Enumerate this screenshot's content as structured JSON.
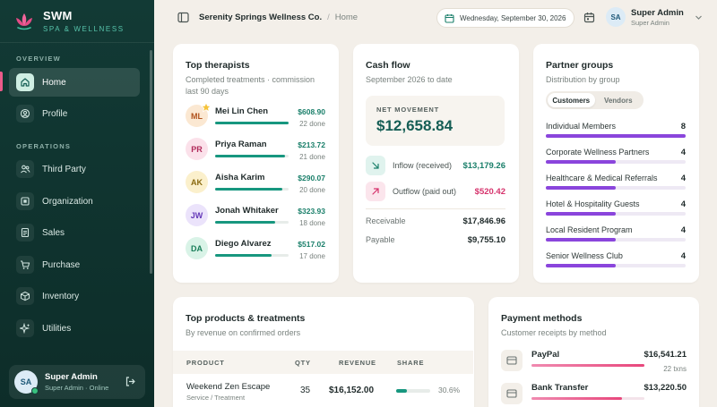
{
  "brand": {
    "name": "SWM",
    "tagline": "SPA & WELLNESS"
  },
  "sidebar": {
    "sections": [
      {
        "label": "OVERVIEW",
        "items": [
          {
            "label": "Home",
            "icon": "home-icon",
            "active": true
          },
          {
            "label": "Profile",
            "icon": "profile-icon"
          }
        ]
      },
      {
        "label": "OPERATIONS",
        "items": [
          {
            "label": "Third Party",
            "icon": "users-icon"
          },
          {
            "label": "Organization",
            "icon": "organization-icon"
          },
          {
            "label": "Sales",
            "icon": "receipt-icon"
          },
          {
            "label": "Purchase",
            "icon": "cart-icon"
          },
          {
            "label": "Inventory",
            "icon": "box-icon"
          },
          {
            "label": "Utilities",
            "icon": "sparkle-icon"
          }
        ]
      }
    ],
    "user": {
      "initials": "SA",
      "name": "Super Admin",
      "status": "Super Admin · Online"
    }
  },
  "topbar": {
    "company": "Serenity Springs Wellness Co.",
    "separator": "/",
    "page": "Home",
    "date": "Wednesday, September 30, 2026",
    "user": {
      "initials": "SA",
      "name": "Super Admin",
      "role": "Super Admin"
    }
  },
  "therapists": {
    "title": "Top therapists",
    "subtitle": "Completed treatments · commission last 90 days",
    "rows": [
      {
        "initials": "ML",
        "name": "Mei Lin Chen",
        "amount": "$608.90",
        "done": "22 done",
        "share": 1.0,
        "avatar_bg": "#fbe8d2",
        "avatar_fg": "#b0521c"
      },
      {
        "initials": "PR",
        "name": "Priya Raman",
        "amount": "$213.72",
        "done": "21 done",
        "share": 0.95,
        "avatar_bg": "#fbe1ea",
        "avatar_fg": "#b02a5a"
      },
      {
        "initials": "AK",
        "name": "Aisha Karim",
        "amount": "$290.07",
        "done": "20 done",
        "share": 0.91,
        "avatar_bg": "#fbf0cc",
        "avatar_fg": "#8a6a10"
      },
      {
        "initials": "JW",
        "name": "Jonah Whitaker",
        "amount": "$323.93",
        "done": "18 done",
        "share": 0.82,
        "avatar_bg": "#ebe3fb",
        "avatar_fg": "#6438b8"
      },
      {
        "initials": "DA",
        "name": "Diego Alvarez",
        "amount": "$517.02",
        "done": "17 done",
        "share": 0.77,
        "avatar_bg": "#d9f3e7",
        "avatar_fg": "#1a7f5a"
      }
    ]
  },
  "cashflow": {
    "title": "Cash flow",
    "subtitle": "September 2026 to date",
    "net_label": "NET MOVEMENT",
    "net_value": "$12,658.84",
    "inflow_label": "Inflow (received)",
    "inflow_value": "$13,179.26",
    "outflow_label": "Outflow (paid out)",
    "outflow_value": "$520.42",
    "receivable_label": "Receivable",
    "receivable_value": "$17,846.96",
    "payable_label": "Payable",
    "payable_value": "$9,755.10",
    "colors": {
      "inflow": "#1a7f6a",
      "outflow": "#d6336c"
    }
  },
  "partners": {
    "title": "Partner groups",
    "subtitle": "Distribution by group",
    "tabs": [
      {
        "label": "Customers",
        "active": true
      },
      {
        "label": "Vendors",
        "active": false
      }
    ],
    "groups": [
      {
        "name": "Individual Members",
        "count": "8",
        "share": 1.0
      },
      {
        "name": "Corporate Wellness Partners",
        "count": "4",
        "share": 0.5
      },
      {
        "name": "Healthcare & Medical Referrals",
        "count": "4",
        "share": 0.5
      },
      {
        "name": "Hotel & Hospitality Guests",
        "count": "4",
        "share": 0.5
      },
      {
        "name": "Local Resident Program",
        "count": "4",
        "share": 0.5
      },
      {
        "name": "Senior Wellness Club",
        "count": "4",
        "share": 0.5
      }
    ]
  },
  "products": {
    "title": "Top products & treatments",
    "subtitle": "By revenue on confirmed orders",
    "columns": {
      "product": "PRODUCT",
      "qty": "QTY",
      "revenue": "REVENUE",
      "share": "SHARE"
    },
    "rows": [
      {
        "name": "Weekend Zen Escape",
        "category": "Service / Treatment",
        "qty": "35",
        "revenue": "$16,152.00",
        "share": "30.6%",
        "share_value": 0.306
      }
    ]
  },
  "payments": {
    "title": "Payment methods",
    "subtitle": "Customer receipts by method",
    "rows": [
      {
        "name": "PayPal",
        "amount": "$16,541.21",
        "txns": "22 txns",
        "share": 1.0
      },
      {
        "name": "Bank Transfer",
        "amount": "$13,220.50",
        "txns": "",
        "share": 0.8
      }
    ]
  }
}
